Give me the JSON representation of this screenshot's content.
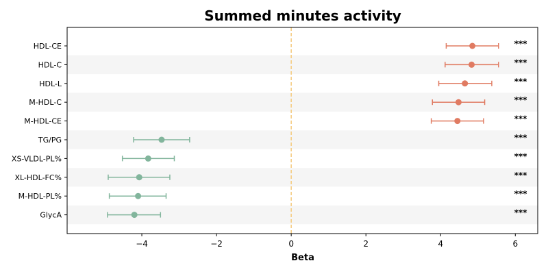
{
  "chart_data": {
    "type": "forest",
    "title": "Summed minutes activity",
    "xlabel": "Beta",
    "xlim": [
      -6.0,
      6.6
    ],
    "xticks": [
      -4,
      -2,
      0,
      2,
      4,
      6
    ],
    "xtick_labels": [
      "−4",
      "−2",
      "0",
      "2",
      "4",
      "6"
    ],
    "reference_line": 0,
    "colors": {
      "positive": "#e07b62",
      "negative": "#82b59c",
      "reference": "#f5c97a",
      "band": "#f5f5f5"
    },
    "rows": [
      {
        "label": "HDL-CE",
        "beta": 4.85,
        "ci_low": 4.15,
        "ci_high": 5.55,
        "sig": "***"
      },
      {
        "label": "HDL-C",
        "beta": 4.83,
        "ci_low": 4.12,
        "ci_high": 5.55,
        "sig": "***"
      },
      {
        "label": "HDL-L",
        "beta": 4.65,
        "ci_low": 3.95,
        "ci_high": 5.37,
        "sig": "***"
      },
      {
        "label": "M-HDL-C",
        "beta": 4.48,
        "ci_low": 3.78,
        "ci_high": 5.18,
        "sig": "***"
      },
      {
        "label": "M-HDL-CE",
        "beta": 4.45,
        "ci_low": 3.75,
        "ci_high": 5.15,
        "sig": "***"
      },
      {
        "label": "TG/PG",
        "beta": -3.47,
        "ci_low": -4.22,
        "ci_high": -2.72,
        "sig": "***"
      },
      {
        "label": "XS-VLDL-PL%",
        "beta": -3.83,
        "ci_low": -4.52,
        "ci_high": -3.13,
        "sig": "***"
      },
      {
        "label": "XL-HDL-FC%",
        "beta": -4.07,
        "ci_low": -4.9,
        "ci_high": -3.25,
        "sig": "***"
      },
      {
        "label": "M-HDL-PL%",
        "beta": -4.1,
        "ci_low": -4.87,
        "ci_high": -3.35,
        "sig": "***"
      },
      {
        "label": "GlycA",
        "beta": -4.2,
        "ci_low": -4.92,
        "ci_high": -3.5,
        "sig": "***"
      }
    ]
  }
}
